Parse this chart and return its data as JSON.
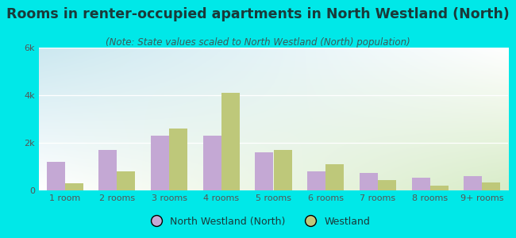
{
  "title": "Rooms in renter-occupied apartments in North Westland (North)",
  "subtitle": "(Note: State values scaled to North Westland (North) population)",
  "categories": [
    "1 room",
    "2 rooms",
    "3 rooms",
    "4 rooms",
    "5 rooms",
    "6 rooms",
    "7 rooms",
    "8 rooms",
    "9+ rooms"
  ],
  "nw_values": [
    1200,
    1700,
    2300,
    2300,
    1600,
    800,
    750,
    550,
    600
  ],
  "w_values": [
    300,
    800,
    2600,
    4100,
    1700,
    1100,
    450,
    200,
    350
  ],
  "nw_color": "#c4a8d4",
  "w_color": "#bec87a",
  "bg_outer": "#00e8e8",
  "bg_chart_topleft": "#cce8f0",
  "bg_chart_botright": "#d8ecc8",
  "ylim": [
    0,
    6000
  ],
  "yticks": [
    0,
    2000,
    4000,
    6000
  ],
  "ytick_labels": [
    "0",
    "2k",
    "4k",
    "6k"
  ],
  "legend_nw": "North Westland (North)",
  "legend_w": "Westland",
  "title_fontsize": 12.5,
  "subtitle_fontsize": 8.5,
  "bar_width": 0.35,
  "title_color": "#1a3a3a",
  "subtitle_color": "#3a5a5a",
  "tick_color": "#555555"
}
